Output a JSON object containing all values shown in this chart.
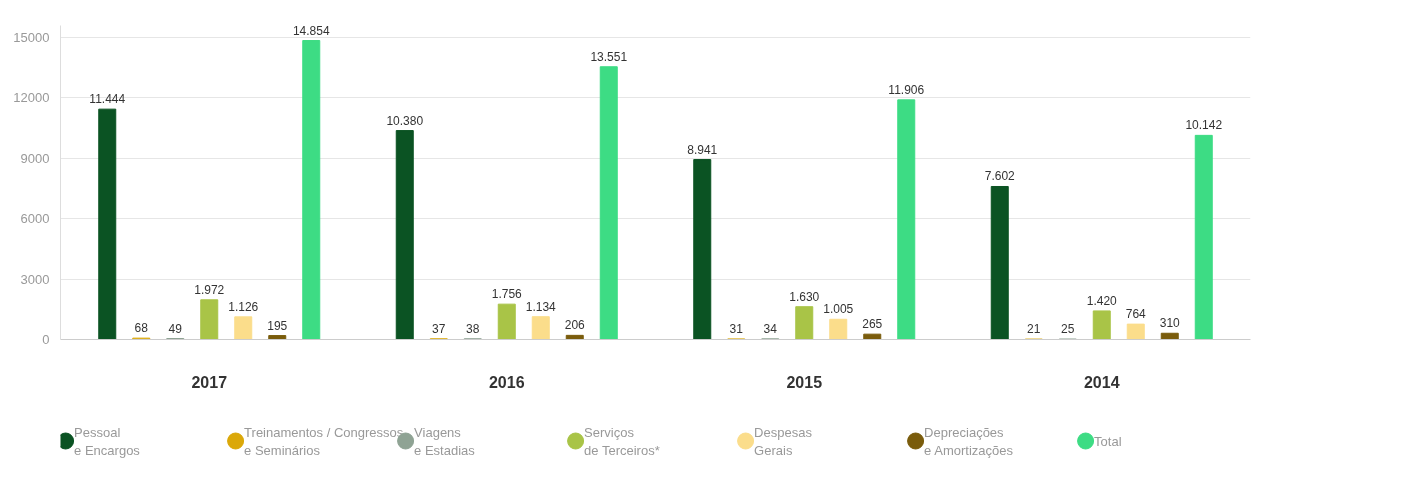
{
  "chart_data": {
    "type": "bar",
    "categories": [
      "2017",
      "2016",
      "2015",
      "2014"
    ],
    "series": [
      {
        "name": "Pessoal\ne Encargos",
        "color": "#0b5323",
        "values": [
          11444,
          10380,
          8941,
          7602
        ],
        "value_labels": [
          "11.444",
          "10.380",
          "8.941",
          "7.602"
        ]
      },
      {
        "name": "Treinamentos / Congressos\ne Seminários",
        "color": "#dba809",
        "values": [
          68,
          37,
          31,
          21
        ],
        "value_labels": [
          "68",
          "37",
          "31",
          "21"
        ]
      },
      {
        "name": "Viagens\ne Estadias",
        "color": "#8fa394",
        "values": [
          49,
          38,
          34,
          25
        ],
        "value_labels": [
          "49",
          "38",
          "34",
          "25"
        ]
      },
      {
        "name": "Serviços\nde Terceiros*",
        "color": "#a9c447",
        "values": [
          1972,
          1756,
          1630,
          1420
        ],
        "value_labels": [
          "1.972",
          "1.756",
          "1.630",
          "1.420"
        ]
      },
      {
        "name": "Despesas\nGerais",
        "color": "#fbdd8b",
        "values": [
          1126,
          1134,
          1005,
          764
        ],
        "value_labels": [
          "1.126",
          "1.134",
          "1.005",
          "764"
        ]
      },
      {
        "name": "Depreciações\ne Amortizações",
        "color": "#7a5c0c",
        "values": [
          195,
          206,
          265,
          310
        ],
        "value_labels": [
          "195",
          "206",
          "265",
          "310"
        ]
      },
      {
        "name": "Total",
        "color": "#3ddc84",
        "values": [
          14854,
          13551,
          11906,
          10142
        ],
        "value_labels": [
          "14.854",
          "13.551",
          "11.906",
          "10.142"
        ]
      }
    ],
    "ylim": [
      0,
      15600
    ],
    "yticks": [
      0,
      3000,
      6000,
      9000,
      12000,
      15000
    ],
    "grid": "y",
    "legend": "bottom"
  }
}
